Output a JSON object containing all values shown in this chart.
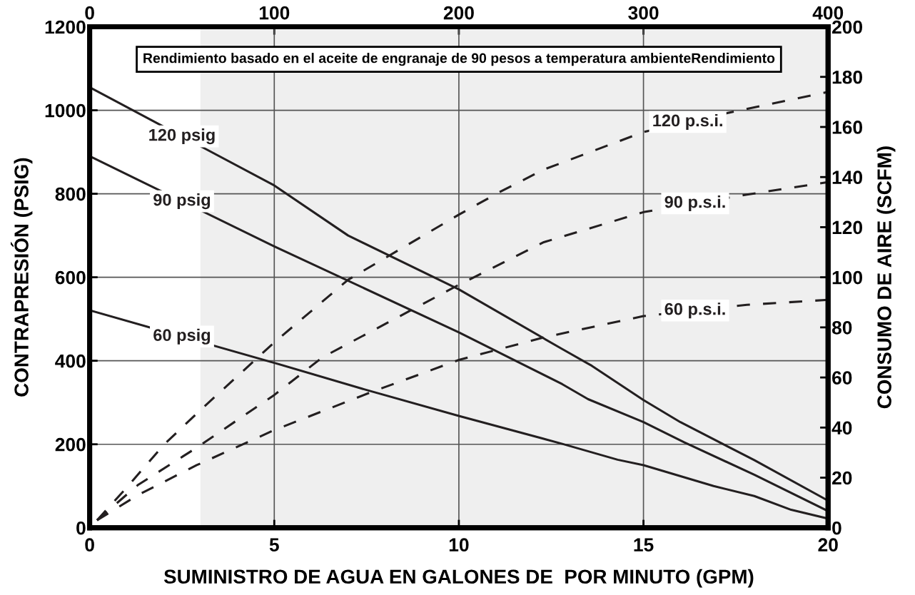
{
  "chart_data": {
    "type": "line",
    "xlabel": "SUMINISTRO DE AGUA EN GALONES DE  POR MINUTO (GPM)",
    "ylabel": "CONTRAPRESIÓN (PSIG)",
    "y2label": "CONSUMO DE AIRE (SCFM)",
    "annotations": [
      "Rendimiento basado en el aceite de engranaje de 90 pesos a temperatura ambienteRendimiento"
    ],
    "xlim": [
      0,
      20
    ],
    "xticks": [
      0,
      5,
      10,
      15,
      20
    ],
    "ylim": [
      0,
      1200
    ],
    "yticks": [
      0,
      200,
      400,
      600,
      800,
      1000,
      1200
    ],
    "y2lim": [
      0,
      200
    ],
    "y2ticks": [
      0,
      20,
      40,
      60,
      80,
      100,
      120,
      140,
      160,
      180,
      200
    ],
    "x2lim": [
      0,
      400
    ],
    "x2ticks": [
      0,
      100,
      200,
      300,
      400
    ],
    "grid": true,
    "legend": false,
    "marker": "none",
    "bands": [
      {
        "axis": "x",
        "from": 3,
        "to": 20,
        "color": "#efefef"
      }
    ],
    "series": [
      {
        "name": "120 psig",
        "color": "#231f20",
        "line_style": "solid",
        "x": [
          0,
          5,
          7,
          10,
          12.8,
          13.6,
          15,
          16,
          18,
          20
        ],
        "values": [
          1055,
          820,
          700,
          571,
          428,
          388,
          306,
          253,
          162,
          65
        ]
      },
      {
        "name": "90 psig",
        "color": "#231f20",
        "line_style": "solid",
        "x": [
          0,
          5,
          10,
          12.8,
          13.5,
          15,
          16.1,
          18,
          20
        ],
        "values": [
          890,
          674,
          468,
          344,
          308,
          253,
          205,
          127,
          40
        ]
      },
      {
        "name": "60 psig",
        "color": "#231f20",
        "line_style": "solid",
        "x": [
          0,
          5,
          7.5,
          10,
          12.8,
          14.3,
          15,
          16.9,
          18,
          19,
          20
        ],
        "values": [
          521,
          395,
          330,
          268,
          201,
          163,
          150,
          100,
          76,
          43,
          22
        ]
      },
      {
        "name": "120 p.s.i.",
        "color": "#231f20",
        "line_style": "dashed",
        "axis": "y2",
        "x": [
          0.2,
          1,
          2,
          3,
          5,
          7,
          10,
          11.1,
          12.3,
          15,
          17.4,
          20
        ],
        "values": [
          3,
          16,
          33,
          47,
          74,
          99,
          125,
          134,
          143,
          158,
          166,
          174
        ]
      },
      {
        "name": "90 p.s.i.",
        "color": "#231f20",
        "line_style": "dashed",
        "axis": "y2",
        "x": [
          0.2,
          1.3,
          2.9,
          5,
          6.3,
          10,
          12.3,
          15,
          17.8,
          20
        ],
        "values": [
          3,
          17,
          32,
          53,
          68,
          97,
          114,
          126,
          133,
          138
        ]
      },
      {
        "name": "60 p.s.i.",
        "color": "#231f20",
        "line_style": "dashed",
        "axis": "y2",
        "x": [
          0.2,
          1.3,
          2.9,
          5,
          7.6,
          10,
          12.3,
          15,
          17.8,
          20
        ],
        "values": [
          3,
          13,
          25,
          39,
          54,
          67,
          76,
          84.5,
          89,
          91
        ]
      }
    ]
  }
}
